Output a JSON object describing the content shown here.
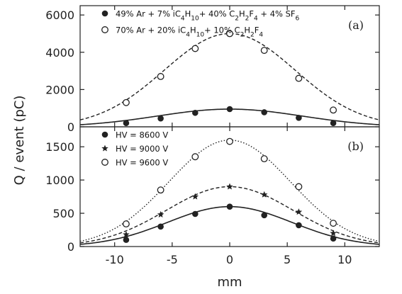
{
  "chart_data": [
    {
      "panel_label": "(a)",
      "type": "scatter",
      "ylim": [
        0,
        6500
      ],
      "xlim": [
        -13,
        13
      ],
      "yticks": [
        0,
        2000,
        4000,
        6000
      ],
      "ytick_labels": [
        "0",
        "2000",
        "4000",
        "6000"
      ],
      "legend_position": "top-left",
      "series": [
        {
          "name": "49% Ar + 7% iC4H10+ 40% C2H2F4 + 4% SF6",
          "marker": "filled-circle",
          "line": "solid",
          "fit_peak": 950,
          "fit_sigma": 6.3,
          "points": [
            [
              -9,
              200
            ],
            [
              -6,
              450
            ],
            [
              -3,
              750
            ],
            [
              0,
              950
            ],
            [
              3,
              780
            ],
            [
              6,
              480
            ],
            [
              9,
              200
            ]
          ]
        },
        {
          "name": "70% Ar + 20% iC4H10+ 10% C2H2F4",
          "marker": "open-circle",
          "line": "dashed",
          "fit_peak": 5000,
          "fit_sigma": 5.7,
          "points": [
            [
              -9,
              1300
            ],
            [
              -6,
              2700
            ],
            [
              -3,
              4200
            ],
            [
              0,
              5000
            ],
            [
              3,
              4100
            ],
            [
              6,
              2600
            ],
            [
              9,
              900
            ]
          ]
        }
      ]
    },
    {
      "panel_label": "(b)",
      "type": "scatter",
      "ylim": [
        0,
        1800
      ],
      "xlim": [
        -13,
        13
      ],
      "yticks": [
        0,
        500,
        1000,
        1500
      ],
      "ytick_labels": [
        "0",
        "500",
        "1000",
        "1500"
      ],
      "legend_position": "top-left",
      "series": [
        {
          "name": "HV = 8600 V",
          "marker": "filled-circle",
          "line": "solid",
          "fit_peak": 600,
          "fit_sigma": 5.4,
          "points": [
            [
              -9,
              100
            ],
            [
              -6,
              300
            ],
            [
              -3,
              490
            ],
            [
              0,
              600
            ],
            [
              3,
              470
            ],
            [
              6,
              320
            ],
            [
              9,
              120
            ]
          ]
        },
        {
          "name": "HV = 9000 V",
          "marker": "star",
          "line": "dashed",
          "fit_peak": 900,
          "fit_sigma": 5.5,
          "points": [
            [
              -9,
              180
            ],
            [
              -6,
              480
            ],
            [
              -3,
              750
            ],
            [
              0,
              900
            ],
            [
              3,
              780
            ],
            [
              6,
              520
            ],
            [
              9,
              200
            ]
          ]
        },
        {
          "name": "HV = 9600 V",
          "marker": "open-circle",
          "line": "dotted",
          "fit_peak": 1600,
          "fit_sigma": 5.3,
          "points": [
            [
              -9,
              340
            ],
            [
              -6,
              850
            ],
            [
              -3,
              1350
            ],
            [
              0,
              1580
            ],
            [
              3,
              1320
            ],
            [
              6,
              900
            ],
            [
              9,
              350
            ]
          ]
        }
      ]
    }
  ],
  "axes": {
    "xlabel": "mm",
    "ylabel": "Q / event (pC)",
    "xticks": [
      -10,
      -5,
      0,
      5,
      10
    ],
    "xtick_labels": [
      "-10",
      "-5",
      "0",
      "5",
      "10"
    ]
  },
  "colors": {
    "ink": "#222222"
  }
}
